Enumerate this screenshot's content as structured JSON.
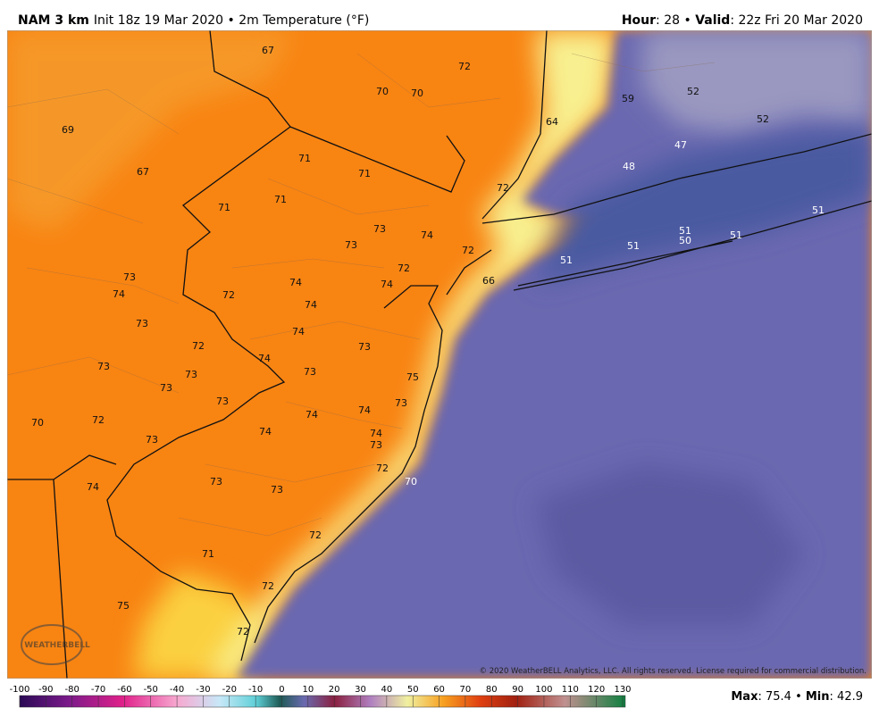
{
  "header": {
    "model": "NAM 3 km",
    "init": "Init 18z 19 Mar 2020 • 2m Temperature (°F)",
    "hour_label": "Hour",
    "hour_value": ": 28 • ",
    "valid_label": "Valid",
    "valid_value": ": 22z Fri 20 Mar 2020"
  },
  "map": {
    "labels": [
      "67",
      "72",
      "70",
      "70",
      "59",
      "52",
      "52",
      "69",
      "64",
      "47",
      "48",
      "67",
      "71",
      "71",
      "72",
      "71",
      "71",
      "51",
      "73",
      "74",
      "73",
      "72",
      "51",
      "50",
      "51",
      "51",
      "51",
      "72",
      "73",
      "74",
      "74",
      "72",
      "74",
      "66",
      "74",
      "73",
      "74",
      "72",
      "73",
      "73",
      "74",
      "73",
      "73",
      "75",
      "73",
      "73",
      "73",
      "70",
      "72",
      "74",
      "74",
      "74",
      "74",
      "73",
      "73",
      "72",
      "70",
      "74",
      "73",
      "73",
      "72",
      "71",
      "72",
      "75",
      "72"
    ],
    "copyright": "© 2020 WeatherBELL Analytics, LLC. All rights reserved. License required for commercial distribution.",
    "logo": "WEATHERBELL"
  },
  "colorbar": {
    "ticks": [
      "-100",
      "-90",
      "-80",
      "-70",
      "-60",
      "-50",
      "-40",
      "-30",
      "-20",
      "-10",
      "0",
      "10",
      "20",
      "30",
      "40",
      "50",
      "60",
      "70",
      "80",
      "90",
      "100",
      "110",
      "120",
      "130"
    ]
  },
  "stats": {
    "max_label": "Max",
    "max_value": ": 75.4 • ",
    "min_label": "Min",
    "min_value": ": 42.9"
  }
}
